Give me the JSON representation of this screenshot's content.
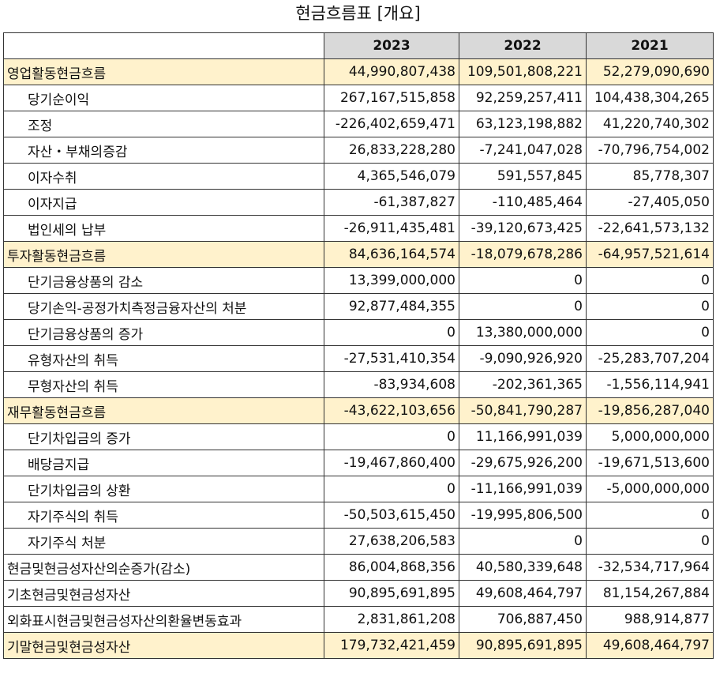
{
  "title": "현금흐름표 [개요]",
  "columns": [
    "2023",
    "2022",
    "2021"
  ],
  "rows": [
    {
      "label": "영업활동현금흐름",
      "section": true,
      "values": [
        "44,990,807,438",
        "109,501,808,221",
        "52,279,090,690"
      ]
    },
    {
      "label": "당기순이익",
      "section": false,
      "values": [
        "267,167,515,858",
        "92,259,257,411",
        "104,438,304,265"
      ]
    },
    {
      "label": "조정",
      "section": false,
      "values": [
        "-226,402,659,471",
        "63,123,198,882",
        "41,220,740,302"
      ]
    },
    {
      "label": "자산・부채의증감",
      "section": false,
      "values": [
        "26,833,228,280",
        "-7,241,047,028",
        "-70,796,754,002"
      ]
    },
    {
      "label": "이자수취",
      "section": false,
      "values": [
        "4,365,546,079",
        "591,557,845",
        "85,778,307"
      ]
    },
    {
      "label": "이자지급",
      "section": false,
      "values": [
        "-61,387,827",
        "-110,485,464",
        "-27,405,050"
      ]
    },
    {
      "label": "법인세의 납부",
      "section": false,
      "values": [
        "-26,911,435,481",
        "-39,120,673,425",
        "-22,641,573,132"
      ]
    },
    {
      "label": "투자활동현금흐름",
      "section": true,
      "values": [
        "84,636,164,574",
        "-18,079,678,286",
        "-64,957,521,614"
      ]
    },
    {
      "label": "단기금융상품의 감소",
      "section": false,
      "values": [
        "13,399,000,000",
        "0",
        "0"
      ]
    },
    {
      "label": "당기손익-공정가치측정금융자산의 처분",
      "section": false,
      "values": [
        "92,877,484,355",
        "0",
        "0"
      ]
    },
    {
      "label": "단기금융상품의 증가",
      "section": false,
      "values": [
        "0",
        "13,380,000,000",
        "0"
      ]
    },
    {
      "label": "유형자산의 취득",
      "section": false,
      "values": [
        "-27,531,410,354",
        "-9,090,926,920",
        "-25,283,707,204"
      ]
    },
    {
      "label": "무형자산의 취득",
      "section": false,
      "values": [
        "-83,934,608",
        "-202,361,365",
        "-1,556,114,941"
      ]
    },
    {
      "label": "재무활동현금흐름",
      "section": true,
      "values": [
        "-43,622,103,656",
        "-50,841,790,287",
        "-19,856,287,040"
      ]
    },
    {
      "label": "단기차입금의 증가",
      "section": false,
      "values": [
        "0",
        "11,166,991,039",
        "5,000,000,000"
      ]
    },
    {
      "label": "배당금지급",
      "section": false,
      "values": [
        "-19,467,860,400",
        "-29,675,926,200",
        "-19,671,513,600"
      ]
    },
    {
      "label": "단기차입금의 상환",
      "section": false,
      "values": [
        "0",
        "-11,166,991,039",
        "-5,000,000,000"
      ]
    },
    {
      "label": "자기주식의 취득",
      "section": false,
      "values": [
        "-50,503,615,450",
        "-19,995,806,500",
        "0"
      ]
    },
    {
      "label": "자기주식 처분",
      "section": false,
      "values": [
        "27,638,206,583",
        "0",
        "0"
      ]
    },
    {
      "label": "현금및현금성자산의순증가(감소)",
      "section": false,
      "top": true,
      "values": [
        "86,004,868,356",
        "40,580,339,648",
        "-32,534,717,964"
      ]
    },
    {
      "label": "기초현금및현금성자산",
      "section": false,
      "top": true,
      "values": [
        "90,895,691,895",
        "49,608,464,797",
        "81,154,267,884"
      ]
    },
    {
      "label": "외화표시현금및현금성자산의환율변동효과",
      "section": false,
      "top": true,
      "values": [
        "2,831,861,208",
        "706,887,450",
        "988,914,877"
      ]
    },
    {
      "label": "기말현금및현금성자산",
      "section": true,
      "top": true,
      "values": [
        "179,732,421,459",
        "90,895,691,895",
        "49,608,464,797"
      ]
    }
  ]
}
